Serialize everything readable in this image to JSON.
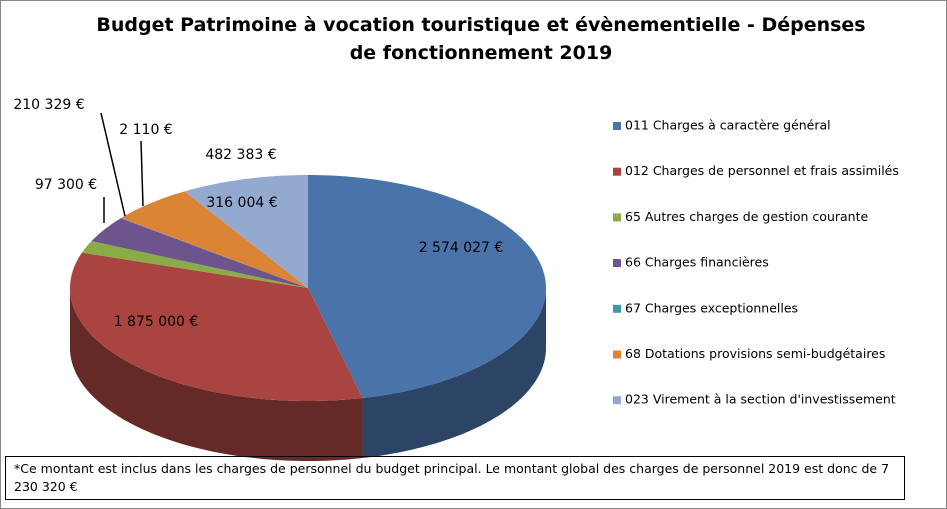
{
  "chart_data": {
    "type": "pie",
    "title": "Budget Patrimoine à vocation touristique et évènementielle - Dépenses de fonctionnement 2019",
    "categories": [
      "011 Charges à caractère général",
      "012 Charges de personnel et frais assimilés",
      "65 Autres charges de gestion courante",
      "66 Charges financières",
      "67 Charges exceptionnelles",
      "68 Dotations provisions semi-budgétaires",
      "023 Virement à la section d'investissement"
    ],
    "values": [
      2574027,
      1875000,
      97300,
      210329,
      2110,
      316004,
      482383
    ],
    "value_labels": [
      "2 574 027 €",
      "1 875 000 €",
      "97 300 €",
      "210 329 €",
      "2 110 €",
      "316 004 €",
      "482 383 €"
    ],
    "colors": [
      "#4a73aa",
      "#a94441",
      "#8aac46",
      "#6e548d",
      "#3e98b0",
      "#dc8435",
      "#94a9d0"
    ],
    "footnote": "*Ce montant est inclus dans les charges de personnel du budget principal. Le montant global des charges de personnel 2019 est donc de 7 230 320 €"
  }
}
